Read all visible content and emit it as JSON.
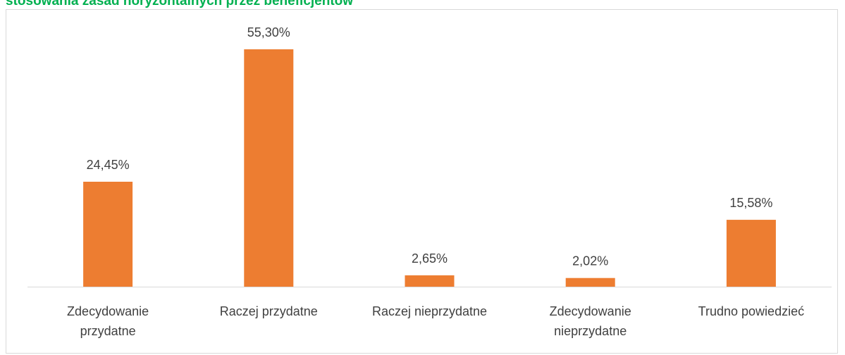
{
  "chart_data": {
    "type": "bar",
    "title": "stosowania zasad horyzontalnych przez beneficjentów",
    "categories": [
      "Zdecydowanie przydatne",
      "Raczej przydatne",
      "Raczej nieprzydatne",
      "Zdecydowanie nieprzydatne",
      "Trudno powiedzieć"
    ],
    "values": [
      24.45,
      55.3,
      2.65,
      2.02,
      15.58
    ],
    "value_labels": [
      "24,45%",
      "55,30%",
      "2,65%",
      "2,02%",
      "15,58%"
    ],
    "color": "#ed7d31"
  }
}
